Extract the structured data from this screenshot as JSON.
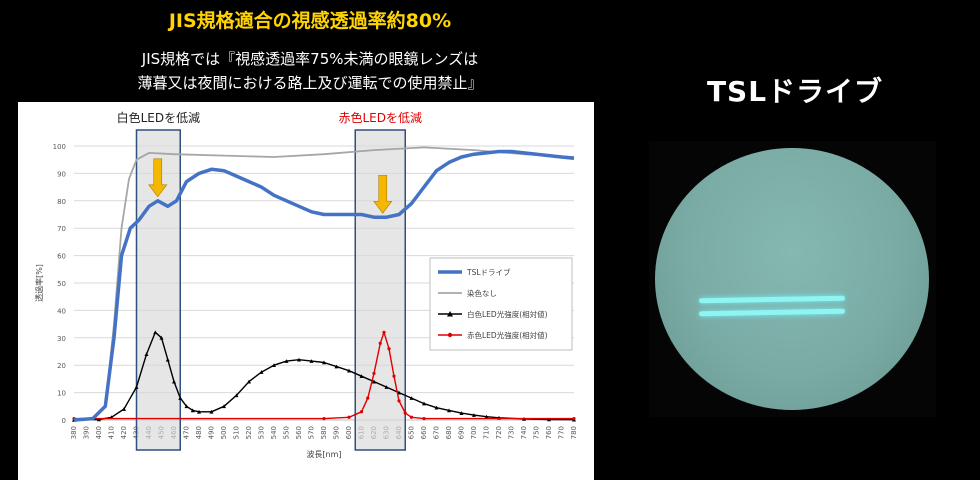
{
  "header": {
    "title": "JIS規格適合の視感透過率約80%",
    "line1": "JIS規格では『視感透過率75%未満の眼鏡レンズは",
    "line2": "薄暮又は夜間における路上及び運転での使用禁止』"
  },
  "right_panel": {
    "title": "TSLドライブ"
  },
  "colors": {
    "title": "#ffd400",
    "tsl": "#4472c4",
    "none": "#a6a6a6",
    "white_led": "#000000",
    "red_led": "#e00000",
    "arrow": "#f5b800",
    "band_red_label": "#e00000"
  },
  "chart_data": {
    "type": "line",
    "xlabel": "波長[nm]",
    "ylabel": "透過率[%]",
    "xlim": [
      380,
      780
    ],
    "ylim": [
      0,
      100
    ],
    "x_ticks": [
      380,
      390,
      400,
      410,
      420,
      430,
      440,
      450,
      460,
      470,
      480,
      490,
      500,
      510,
      520,
      530,
      540,
      550,
      560,
      570,
      580,
      590,
      600,
      610,
      620,
      630,
      640,
      650,
      660,
      670,
      680,
      690,
      700,
      710,
      720,
      730,
      740,
      750,
      760,
      770,
      780
    ],
    "y_ticks": [
      0,
      10,
      20,
      30,
      40,
      50,
      60,
      70,
      80,
      90,
      100
    ],
    "grid": true,
    "legend_position": "right",
    "bands": [
      {
        "label": "白色LEDを低減",
        "range": [
          430,
          465
        ],
        "arrow_x": 447,
        "arrow_y": 80
      },
      {
        "label": "赤色LEDを低減",
        "range": [
          605,
          645
        ],
        "arrow_x": 627,
        "arrow_y": 74
      }
    ],
    "series": [
      {
        "name": "TSLドライブ",
        "style": "tsl",
        "points": [
          [
            380,
            0
          ],
          [
            395,
            0.5
          ],
          [
            405,
            5
          ],
          [
            412,
            30
          ],
          [
            418,
            60
          ],
          [
            425,
            70
          ],
          [
            432,
            73
          ],
          [
            440,
            78
          ],
          [
            447,
            80
          ],
          [
            455,
            78
          ],
          [
            462,
            80
          ],
          [
            470,
            87
          ],
          [
            480,
            90
          ],
          [
            490,
            91.5
          ],
          [
            500,
            91
          ],
          [
            510,
            89
          ],
          [
            520,
            87
          ],
          [
            530,
            85
          ],
          [
            540,
            82
          ],
          [
            550,
            80
          ],
          [
            560,
            78
          ],
          [
            570,
            76
          ],
          [
            580,
            75
          ],
          [
            590,
            75
          ],
          [
            600,
            75
          ],
          [
            610,
            75
          ],
          [
            620,
            74
          ],
          [
            630,
            74
          ],
          [
            640,
            75
          ],
          [
            650,
            79
          ],
          [
            660,
            85
          ],
          [
            670,
            91
          ],
          [
            680,
            94
          ],
          [
            690,
            96
          ],
          [
            700,
            97
          ],
          [
            710,
            97.5
          ],
          [
            720,
            98
          ],
          [
            730,
            98
          ],
          [
            740,
            97.5
          ],
          [
            750,
            97
          ],
          [
            760,
            96.5
          ],
          [
            770,
            96
          ],
          [
            780,
            95.5
          ]
        ]
      },
      {
        "name": "染色なし",
        "style": "none",
        "points": [
          [
            380,
            0
          ],
          [
            395,
            0.5
          ],
          [
            405,
            5
          ],
          [
            412,
            35
          ],
          [
            418,
            70
          ],
          [
            424,
            88
          ],
          [
            430,
            95
          ],
          [
            440,
            97.5
          ],
          [
            460,
            97
          ],
          [
            500,
            96.5
          ],
          [
            540,
            96
          ],
          [
            580,
            97
          ],
          [
            620,
            98.5
          ],
          [
            660,
            99.5
          ],
          [
            700,
            98.5
          ],
          [
            740,
            97
          ],
          [
            780,
            96
          ]
        ]
      },
      {
        "name": "白色LED光強度(相対値)",
        "style": "white",
        "points": [
          [
            380,
            0
          ],
          [
            400,
            0.2
          ],
          [
            410,
            1
          ],
          [
            420,
            4
          ],
          [
            430,
            12
          ],
          [
            438,
            24
          ],
          [
            445,
            32
          ],
          [
            450,
            30
          ],
          [
            455,
            22
          ],
          [
            460,
            14
          ],
          [
            465,
            8
          ],
          [
            470,
            5
          ],
          [
            475,
            3.5
          ],
          [
            480,
            3
          ],
          [
            490,
            3
          ],
          [
            500,
            5
          ],
          [
            510,
            9
          ],
          [
            520,
            14
          ],
          [
            530,
            17.5
          ],
          [
            540,
            20
          ],
          [
            550,
            21.5
          ],
          [
            560,
            22
          ],
          [
            570,
            21.5
          ],
          [
            580,
            21
          ],
          [
            590,
            19.5
          ],
          [
            600,
            18
          ],
          [
            610,
            16
          ],
          [
            620,
            14
          ],
          [
            630,
            12
          ],
          [
            640,
            10
          ],
          [
            650,
            8
          ],
          [
            660,
            6
          ],
          [
            670,
            4.5
          ],
          [
            680,
            3.5
          ],
          [
            690,
            2.5
          ],
          [
            700,
            1.8
          ],
          [
            710,
            1.2
          ],
          [
            720,
            0.8
          ],
          [
            740,
            0.4
          ],
          [
            760,
            0.2
          ],
          [
            780,
            0.1
          ]
        ]
      },
      {
        "name": "赤色LED光強度(相対値)",
        "style": "red",
        "points": [
          [
            380,
            0.5
          ],
          [
            580,
            0.5
          ],
          [
            600,
            1
          ],
          [
            610,
            3
          ],
          [
            615,
            8
          ],
          [
            620,
            17
          ],
          [
            625,
            28
          ],
          [
            628,
            32
          ],
          [
            632,
            26
          ],
          [
            636,
            16
          ],
          [
            640,
            7
          ],
          [
            645,
            2.5
          ],
          [
            650,
            1
          ],
          [
            660,
            0.5
          ],
          [
            780,
            0.5
          ]
        ]
      }
    ]
  }
}
